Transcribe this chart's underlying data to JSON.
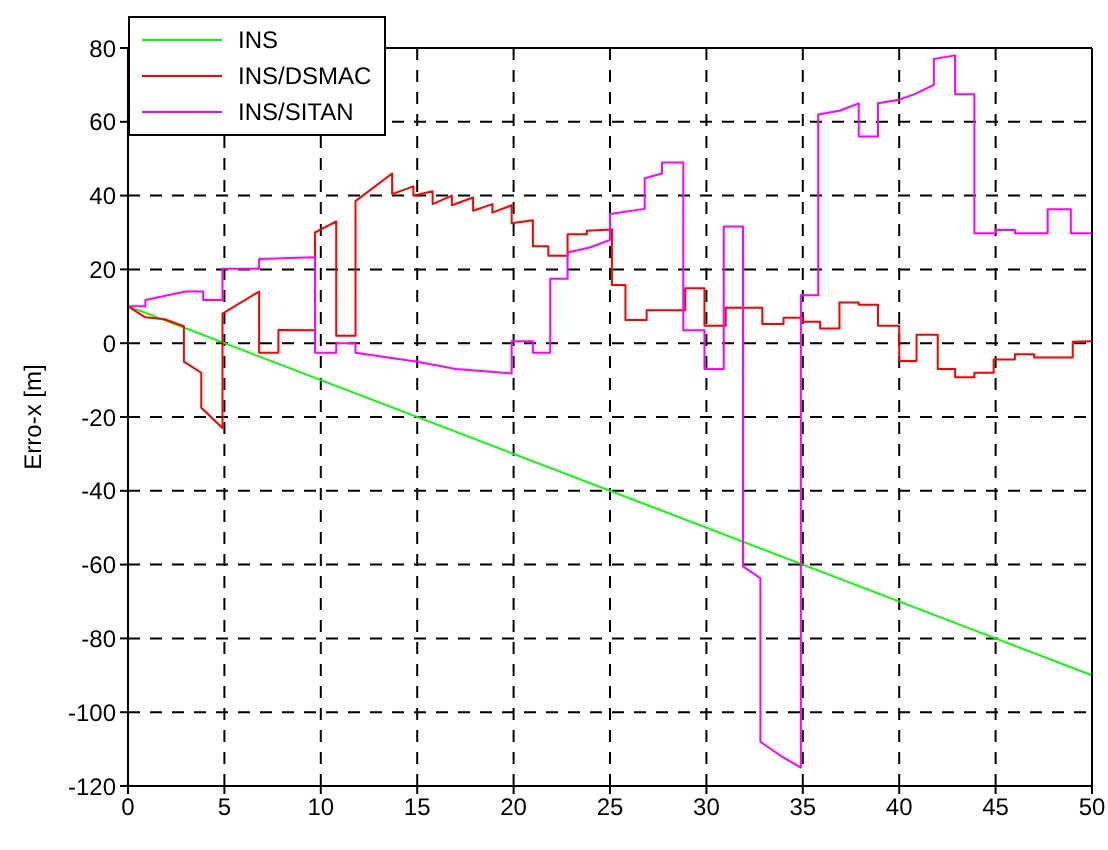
{
  "chart_data": {
    "type": "line",
    "ylabel": "Erro-x [m]",
    "xlim": [
      0,
      50
    ],
    "xticks": [
      0,
      5,
      10,
      15,
      20,
      25,
      30,
      35,
      40,
      45,
      50
    ],
    "ylim": [
      -120,
      80
    ],
    "yticks": [
      -120,
      -100,
      -80,
      -60,
      -40,
      -20,
      0,
      20,
      40,
      60,
      80
    ],
    "grid": true,
    "legend": "top left",
    "line_style": "solid",
    "marker": "none",
    "series": [
      {
        "name": "INS",
        "color": "#00ff00",
        "x": [
          0,
          50
        ],
        "values": [
          10,
          -90
        ]
      },
      {
        "name": "INS/DSMAC",
        "color": "#ff0000",
        "x": [
          0,
          0.9,
          1.9,
          2.9,
          2.9,
          3.8,
          3.8,
          4.9,
          4.9,
          6.8,
          6.8,
          7.8,
          7.8,
          9.7,
          9.7,
          10.8,
          10.8,
          11.8,
          11.8,
          13.7,
          13.7,
          14.8,
          14.8,
          15.8,
          15.8,
          16.8,
          16.8,
          17.9,
          17.9,
          18.9,
          18.9,
          19.9,
          19.9,
          21,
          21,
          21.8,
          21.8,
          22.8,
          22.8,
          23.8,
          23.8,
          25.1,
          25.1,
          25.8,
          25.8,
          26.9,
          26.9,
          28.9,
          28.9,
          29.9,
          29.9,
          31,
          31,
          32.9,
          32.9,
          34,
          34,
          35,
          35,
          35.9,
          35.9,
          36.9,
          36.9,
          37.9,
          37.9,
          38.9,
          38.9,
          40,
          40,
          40.9,
          40.9,
          42,
          42,
          42.9,
          42.9,
          43.9,
          43.9,
          44.9,
          44.9,
          46,
          46,
          47,
          47,
          49,
          49,
          50
        ],
        "values": [
          10,
          7,
          6.5,
          4.6,
          -5,
          -8,
          -17.5,
          -23,
          8,
          14,
          -2.6,
          -2.6,
          3.6,
          3.5,
          30,
          33,
          2,
          2,
          38.5,
          46,
          40.4,
          42.5,
          40,
          41.2,
          37.7,
          40,
          37.4,
          39.5,
          35.9,
          37.7,
          35.4,
          37.4,
          32.5,
          33.3,
          26.3,
          26.3,
          23.7,
          23.7,
          29.5,
          29.5,
          30.5,
          30.8,
          15.8,
          15.8,
          6.3,
          6.3,
          8.9,
          8.9,
          14.9,
          14.9,
          4.7,
          4.7,
          9.6,
          9.6,
          5.2,
          5.2,
          6.9,
          6.9,
          5.8,
          5.8,
          4,
          4,
          11,
          11,
          10.4,
          10.4,
          4.7,
          4.7,
          -4.8,
          -4.8,
          2.3,
          2.3,
          -7,
          -7,
          -9.2,
          -9.2,
          -8,
          -8,
          -4.4,
          -4.4,
          -3,
          -3,
          -3.9,
          -3.9,
          0.4,
          0.5
        ]
      },
      {
        "name": "INS/SITAN",
        "color": "#ff00ff",
        "x": [
          0,
          0.9,
          0.9,
          3,
          3.9,
          3.9,
          4.9,
          4.9,
          6.8,
          6.8,
          9.7,
          9.7,
          10.8,
          10.8,
          11.8,
          11.8,
          15,
          17,
          19.9,
          19.9,
          21,
          21,
          21.9,
          21.9,
          22.8,
          22.8,
          24,
          25,
          25,
          26.8,
          26.8,
          27.7,
          27.7,
          28.8,
          28.8,
          29.9,
          29.9,
          30.9,
          30.9,
          31.9,
          31.9,
          32.8,
          32.8,
          33.9,
          34.9,
          34.9,
          35.8,
          35.8,
          36.9,
          37.9,
          37.9,
          38.9,
          38.9,
          40,
          40.8,
          41.8,
          41.8,
          42.9,
          42.9,
          43.9,
          43.9,
          45,
          45,
          46,
          46,
          47.7,
          47.7,
          48.9,
          48.9,
          50
        ],
        "values": [
          10,
          10,
          11.7,
          14,
          14,
          11.7,
          11.7,
          20.2,
          20.2,
          22.8,
          23.3,
          -2.6,
          -2.6,
          0,
          0,
          -2.6,
          -5,
          -7,
          -8.2,
          0.5,
          0.5,
          -2.6,
          -2.6,
          17.5,
          17.5,
          24.6,
          26,
          28,
          35,
          36.4,
          44.7,
          46,
          49,
          49,
          3.5,
          3.5,
          -7,
          -7,
          31.6,
          31.6,
          -60.5,
          -63.7,
          -108,
          -112,
          -115,
          13,
          13,
          62,
          63,
          65,
          56,
          56,
          65,
          66,
          67.5,
          70,
          77,
          78,
          67.5,
          67.5,
          29.8,
          29.8,
          30.7,
          30.7,
          29.8,
          29.8,
          36.3,
          36.3,
          29.8,
          29.8
        ]
      }
    ]
  }
}
